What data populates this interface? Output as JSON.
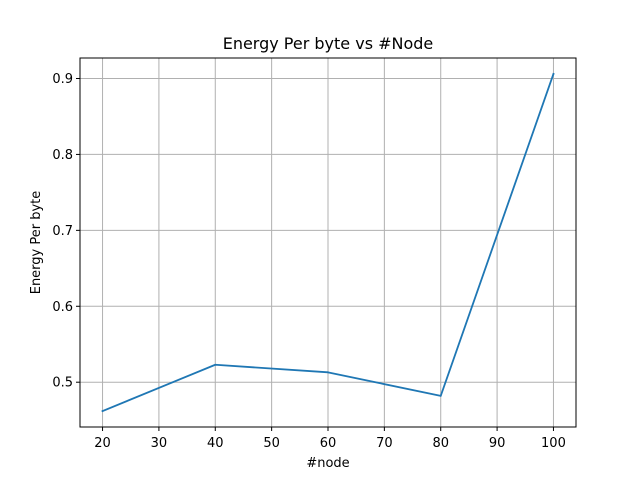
{
  "chart_data": {
    "type": "line",
    "title": "Energy Per byte vs #Node",
    "xlabel": "#node",
    "ylabel": "Energy Per byte",
    "x": [
      20,
      40,
      60,
      80,
      100
    ],
    "series": [
      {
        "values": [
          0.462,
          0.523,
          0.513,
          0.482,
          0.906
        ]
      }
    ],
    "xlim": [
      16,
      104
    ],
    "ylim": [
      0.441,
      0.927
    ],
    "xticks": [
      20,
      30,
      40,
      50,
      60,
      70,
      80,
      90,
      100
    ],
    "xtick_labels": [
      "20",
      "30",
      "40",
      "50",
      "60",
      "70",
      "80",
      "90",
      "100"
    ],
    "yticks": [
      0.5,
      0.6,
      0.7,
      0.8,
      0.9
    ],
    "ytick_labels": [
      "0.5",
      "0.6",
      "0.7",
      "0.8",
      "0.9"
    ],
    "grid": true,
    "line_color": "#1f77b4",
    "grid_color": "#b0b0b0"
  }
}
